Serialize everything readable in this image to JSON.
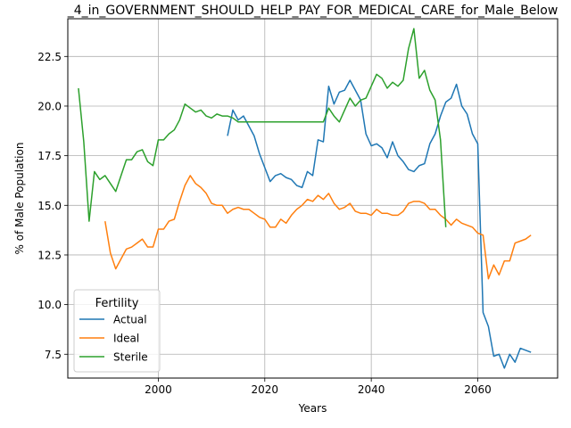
{
  "chart_data": {
    "type": "line",
    "title": "_4_in_GOVERNMENT_SHOULD_HELP_PAY_FOR_MEDICAL_CARE_for_Male_Below",
    "xlabel": "Years",
    "ylabel": "% of Male Population",
    "xlim": [
      1983,
      2075
    ],
    "ylim": [
      6.3,
      24.4
    ],
    "x_ticks": [
      2000,
      2020,
      2040,
      2060
    ],
    "y_ticks": [
      7.5,
      10.0,
      12.5,
      15.0,
      17.5,
      20.0,
      22.5
    ],
    "x_tick_labels": [
      "2000",
      "2020",
      "2040",
      "2060"
    ],
    "y_tick_labels": [
      "7.5",
      "10.0",
      "12.5",
      "15.0",
      "17.5",
      "20.0",
      "22.5"
    ],
    "grid": true,
    "legend": {
      "title": "Fertility",
      "placement": "lower-left"
    },
    "series": [
      {
        "name": "Actual",
        "color": "#1f77b4",
        "points": [
          [
            2013,
            18.5
          ],
          [
            2014,
            19.8
          ],
          [
            2015,
            19.3
          ],
          [
            2016,
            19.5
          ],
          [
            2017,
            19.0
          ],
          [
            2018,
            18.5
          ],
          [
            2019,
            17.6
          ],
          [
            2020,
            16.9
          ],
          [
            2021,
            16.2
          ],
          [
            2022,
            16.5
          ],
          [
            2023,
            16.6
          ],
          [
            2024,
            16.4
          ],
          [
            2025,
            16.3
          ],
          [
            2026,
            16.0
          ],
          [
            2027,
            15.9
          ],
          [
            2028,
            16.7
          ],
          [
            2029,
            16.5
          ],
          [
            2030,
            18.3
          ],
          [
            2031,
            18.2
          ],
          [
            2032,
            21.0
          ],
          [
            2033,
            20.1
          ],
          [
            2034,
            20.7
          ],
          [
            2035,
            20.8
          ],
          [
            2036,
            21.3
          ],
          [
            2037,
            20.8
          ],
          [
            2038,
            20.3
          ],
          [
            2039,
            18.6
          ],
          [
            2040,
            18.0
          ],
          [
            2041,
            18.1
          ],
          [
            2042,
            17.9
          ],
          [
            2043,
            17.4
          ],
          [
            2044,
            18.2
          ],
          [
            2045,
            17.5
          ],
          [
            2046,
            17.2
          ],
          [
            2047,
            16.8
          ],
          [
            2048,
            16.7
          ],
          [
            2049,
            17.0
          ],
          [
            2050,
            17.1
          ],
          [
            2051,
            18.1
          ],
          [
            2052,
            18.6
          ],
          [
            2053,
            19.5
          ],
          [
            2054,
            20.2
          ],
          [
            2055,
            20.4
          ],
          [
            2056,
            21.1
          ],
          [
            2057,
            20.0
          ],
          [
            2058,
            19.6
          ],
          [
            2059,
            18.6
          ],
          [
            2060,
            18.1
          ],
          [
            2061,
            9.6
          ],
          [
            2062,
            8.9
          ],
          [
            2063,
            7.4
          ],
          [
            2064,
            7.5
          ],
          [
            2065,
            6.8
          ],
          [
            2066,
            7.5
          ],
          [
            2067,
            7.1
          ],
          [
            2068,
            7.8
          ],
          [
            2069,
            7.7
          ],
          [
            2070,
            7.6
          ]
        ]
      },
      {
        "name": "Ideal",
        "color": "#ff7f0e",
        "points": [
          [
            1990,
            14.2
          ],
          [
            1991,
            12.6
          ],
          [
            1992,
            11.8
          ],
          [
            1993,
            12.3
          ],
          [
            1994,
            12.8
          ],
          [
            1995,
            12.9
          ],
          [
            1996,
            13.1
          ],
          [
            1997,
            13.3
          ],
          [
            1998,
            12.9
          ],
          [
            1999,
            12.9
          ],
          [
            2000,
            13.8
          ],
          [
            2001,
            13.8
          ],
          [
            2002,
            14.2
          ],
          [
            2003,
            14.3
          ],
          [
            2004,
            15.2
          ],
          [
            2005,
            16.0
          ],
          [
            2006,
            16.5
          ],
          [
            2007,
            16.1
          ],
          [
            2008,
            15.9
          ],
          [
            2009,
            15.6
          ],
          [
            2010,
            15.1
          ],
          [
            2011,
            15.0
          ],
          [
            2012,
            15.0
          ],
          [
            2013,
            14.6
          ],
          [
            2014,
            14.8
          ],
          [
            2015,
            14.9
          ],
          [
            2016,
            14.8
          ],
          [
            2017,
            14.8
          ],
          [
            2018,
            14.6
          ],
          [
            2019,
            14.4
          ],
          [
            2020,
            14.3
          ],
          [
            2021,
            13.9
          ],
          [
            2022,
            13.9
          ],
          [
            2023,
            14.3
          ],
          [
            2024,
            14.1
          ],
          [
            2025,
            14.5
          ],
          [
            2026,
            14.8
          ],
          [
            2027,
            15.0
          ],
          [
            2028,
            15.3
          ],
          [
            2029,
            15.2
          ],
          [
            2030,
            15.5
          ],
          [
            2031,
            15.3
          ],
          [
            2032,
            15.6
          ],
          [
            2033,
            15.1
          ],
          [
            2034,
            14.8
          ],
          [
            2035,
            14.9
          ],
          [
            2036,
            15.1
          ],
          [
            2037,
            14.7
          ],
          [
            2038,
            14.6
          ],
          [
            2039,
            14.6
          ],
          [
            2040,
            14.5
          ],
          [
            2041,
            14.8
          ],
          [
            2042,
            14.6
          ],
          [
            2043,
            14.6
          ],
          [
            2044,
            14.5
          ],
          [
            2045,
            14.5
          ],
          [
            2046,
            14.7
          ],
          [
            2047,
            15.1
          ],
          [
            2048,
            15.2
          ],
          [
            2049,
            15.2
          ],
          [
            2050,
            15.1
          ],
          [
            2051,
            14.8
          ],
          [
            2052,
            14.8
          ],
          [
            2053,
            14.5
          ],
          [
            2054,
            14.3
          ],
          [
            2055,
            14.0
          ],
          [
            2056,
            14.3
          ],
          [
            2057,
            14.1
          ],
          [
            2058,
            14.0
          ],
          [
            2059,
            13.9
          ],
          [
            2060,
            13.6
          ],
          [
            2061,
            13.5
          ],
          [
            2062,
            11.3
          ],
          [
            2063,
            12.0
          ],
          [
            2064,
            11.5
          ],
          [
            2065,
            12.2
          ],
          [
            2066,
            12.2
          ],
          [
            2067,
            13.1
          ],
          [
            2068,
            13.2
          ],
          [
            2069,
            13.3
          ],
          [
            2070,
            13.5
          ]
        ]
      },
      {
        "name": "Sterile",
        "color": "#2ca02c",
        "points": [
          [
            1985,
            20.9
          ],
          [
            1986,
            18.2
          ],
          [
            1987,
            14.2
          ],
          [
            1988,
            16.7
          ],
          [
            1989,
            16.3
          ],
          [
            1990,
            16.5
          ],
          [
            1991,
            16.1
          ],
          [
            1992,
            15.7
          ],
          [
            1993,
            16.5
          ],
          [
            1994,
            17.3
          ],
          [
            1995,
            17.3
          ],
          [
            1996,
            17.7
          ],
          [
            1997,
            17.8
          ],
          [
            1998,
            17.2
          ],
          [
            1999,
            17.0
          ],
          [
            2000,
            18.3
          ],
          [
            2001,
            18.3
          ],
          [
            2002,
            18.6
          ],
          [
            2003,
            18.8
          ],
          [
            2004,
            19.3
          ],
          [
            2005,
            20.1
          ],
          [
            2006,
            19.9
          ],
          [
            2007,
            19.7
          ],
          [
            2008,
            19.8
          ],
          [
            2009,
            19.5
          ],
          [
            2010,
            19.4
          ],
          [
            2011,
            19.6
          ],
          [
            2012,
            19.5
          ],
          [
            2013,
            19.5
          ],
          [
            2014,
            19.4
          ],
          [
            2015,
            19.2
          ],
          [
            2016,
            19.2
          ],
          [
            2017,
            19.2
          ],
          [
            2018,
            19.2
          ],
          [
            2019,
            19.2
          ],
          [
            2020,
            19.2
          ],
          [
            2021,
            19.2
          ],
          [
            2022,
            19.2
          ],
          [
            2023,
            19.2
          ],
          [
            2024,
            19.2
          ],
          [
            2025,
            19.2
          ],
          [
            2026,
            19.2
          ],
          [
            2027,
            19.2
          ],
          [
            2028,
            19.2
          ],
          [
            2029,
            19.2
          ],
          [
            2030,
            19.2
          ],
          [
            2031,
            19.2
          ],
          [
            2032,
            19.9
          ],
          [
            2033,
            19.5
          ],
          [
            2034,
            19.2
          ],
          [
            2035,
            19.8
          ],
          [
            2036,
            20.4
          ],
          [
            2037,
            20.0
          ],
          [
            2038,
            20.3
          ],
          [
            2039,
            20.4
          ],
          [
            2040,
            21.0
          ],
          [
            2041,
            21.6
          ],
          [
            2042,
            21.4
          ],
          [
            2043,
            20.9
          ],
          [
            2044,
            21.2
          ],
          [
            2045,
            21.0
          ],
          [
            2046,
            21.3
          ],
          [
            2047,
            22.9
          ],
          [
            2048,
            23.9
          ],
          [
            2049,
            21.4
          ],
          [
            2050,
            21.8
          ],
          [
            2051,
            20.8
          ],
          [
            2052,
            20.3
          ],
          [
            2053,
            18.3
          ],
          [
            2054,
            13.9
          ]
        ]
      }
    ]
  }
}
